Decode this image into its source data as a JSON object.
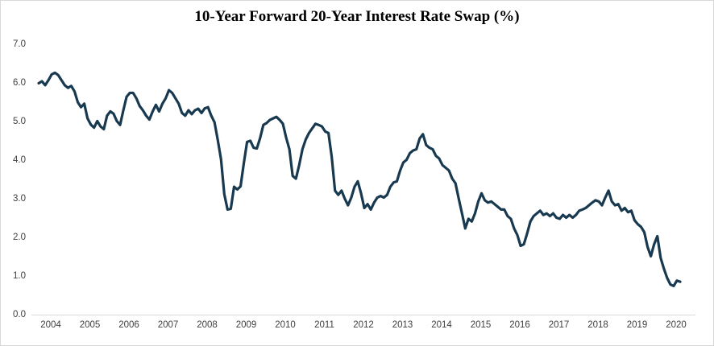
{
  "chart": {
    "title": "10-Year Forward 20-Year Interest Rate Swap (%)"
  },
  "chart_data": {
    "type": "line",
    "title": "10-Year Forward 20-Year Interest Rate Swap (%)",
    "xlabel": "",
    "ylabel": "",
    "grid": "off",
    "legend": "none",
    "x_axis": {
      "tick_labels": [
        "2004",
        "2005",
        "2006",
        "2007",
        "2008",
        "2009",
        "2010",
        "2011",
        "2012",
        "2013",
        "2014",
        "2015",
        "2016",
        "2017",
        "2018",
        "2019",
        "2020"
      ]
    },
    "y_axis": {
      "tick_labels": [
        "0.0",
        "1.0",
        "2.0",
        "3.0",
        "4.0",
        "5.0",
        "6.0",
        "7.0"
      ],
      "range": [
        0.0,
        7.0
      ]
    },
    "colors": {
      "line": "#18394F",
      "axis_line": "#D9D9D9",
      "tick_text": "#404040",
      "title_text": "#000000",
      "border": "#D8D8D8",
      "background": "#FFFFFF"
    },
    "series": [
      {
        "name": "10-Year Forward 20-Year Interest Rate Swap (%)",
        "frequency": "monthly",
        "x_range": [
          2004.0,
          2020.5
        ],
        "values": [
          5.97,
          6.02,
          5.92,
          6.05,
          6.2,
          6.24,
          6.18,
          6.05,
          5.92,
          5.85,
          5.9,
          5.76,
          5.48,
          5.35,
          5.44,
          5.06,
          4.9,
          4.82,
          4.99,
          4.85,
          4.78,
          5.13,
          5.24,
          5.18,
          4.99,
          4.89,
          5.27,
          5.62,
          5.72,
          5.72,
          5.58,
          5.38,
          5.27,
          5.13,
          5.03,
          5.24,
          5.41,
          5.24,
          5.44,
          5.58,
          5.79,
          5.72,
          5.58,
          5.44,
          5.2,
          5.13,
          5.27,
          5.17,
          5.27,
          5.31,
          5.2,
          5.32,
          5.35,
          5.13,
          4.96,
          4.5,
          4.0,
          3.1,
          2.7,
          2.72,
          3.29,
          3.22,
          3.3,
          3.9,
          4.45,
          4.48,
          4.3,
          4.28,
          4.55,
          4.89,
          4.94,
          5.02,
          5.06,
          5.1,
          5.02,
          4.92,
          4.56,
          4.26,
          3.57,
          3.5,
          3.85,
          4.26,
          4.51,
          4.68,
          4.8,
          4.92,
          4.89,
          4.85,
          4.72,
          4.68,
          4.06,
          3.19,
          3.08,
          3.19,
          2.98,
          2.81,
          3.01,
          3.29,
          3.43,
          3.12,
          2.74,
          2.84,
          2.7,
          2.88,
          3.01,
          3.05,
          3.01,
          3.08,
          3.29,
          3.4,
          3.43,
          3.71,
          3.92,
          3.99,
          4.16,
          4.23,
          4.26,
          4.54,
          4.65,
          4.37,
          4.3,
          4.26,
          4.09,
          4.02,
          3.85,
          3.78,
          3.71,
          3.5,
          3.38,
          2.98,
          2.6,
          2.21,
          2.46,
          2.39,
          2.6,
          2.91,
          3.12,
          2.94,
          2.88,
          2.91,
          2.84,
          2.77,
          2.7,
          2.7,
          2.53,
          2.46,
          2.21,
          2.04,
          1.76,
          1.8,
          2.08,
          2.39,
          2.53,
          2.6,
          2.67,
          2.56,
          2.6,
          2.53,
          2.6,
          2.49,
          2.46,
          2.56,
          2.49,
          2.56,
          2.49,
          2.56,
          2.67,
          2.7,
          2.74,
          2.81,
          2.88,
          2.94,
          2.91,
          2.81,
          3.01,
          3.19,
          2.91,
          2.81,
          2.84,
          2.67,
          2.74,
          2.63,
          2.67,
          2.42,
          2.32,
          2.25,
          2.11,
          1.73,
          1.49,
          1.8,
          2.01,
          1.45,
          1.17,
          0.93,
          0.76,
          0.72,
          0.86,
          0.83
        ]
      }
    ]
  }
}
